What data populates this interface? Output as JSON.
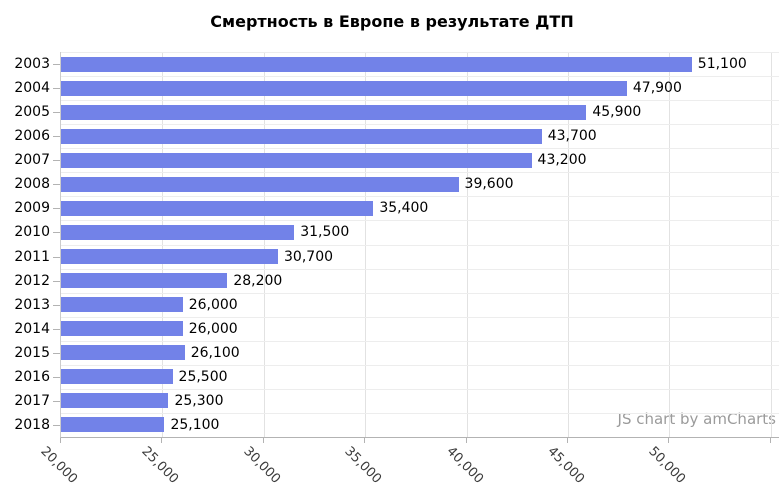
{
  "chart_data": {
    "type": "bar",
    "orientation": "horizontal",
    "title": "Смертность в Европе в результате ДТП",
    "categories": [
      "2003",
      "2004",
      "2005",
      "2006",
      "2007",
      "2008",
      "2009",
      "2010",
      "2011",
      "2012",
      "2013",
      "2014",
      "2015",
      "2016",
      "2017",
      "2018"
    ],
    "values": [
      51100,
      47900,
      45900,
      43700,
      43200,
      39600,
      35400,
      31500,
      30700,
      28200,
      26000,
      26000,
      26100,
      25500,
      25300,
      25100
    ],
    "value_labels": [
      "51,100",
      "47,900",
      "45,900",
      "43,700",
      "43,200",
      "39,600",
      "35,400",
      "31,500",
      "30,700",
      "28,200",
      "26,000",
      "26,000",
      "26,100",
      "25,500",
      "25,300",
      "25,100"
    ],
    "xlim": [
      20000,
      55400
    ],
    "x_tick_values": [
      20000,
      25000,
      30000,
      35000,
      40000,
      45000,
      50000
    ],
    "x_tick_labels": [
      "20,000",
      "25,000",
      "30,000",
      "35,000",
      "40,000",
      "45,000",
      "50,000"
    ],
    "unlabeled_grid_values": [
      55000
    ],
    "grid": true,
    "legend_position": "none",
    "xlabel": "",
    "ylabel": ""
  },
  "watermark": {
    "label": "JS chart by amCharts"
  },
  "colors": {
    "bar": "#7282E8",
    "grid_vertical": "#e2e2e2",
    "grid_horizontal": "#ededed",
    "axis_line": "#b3b3b3",
    "text": "#000000",
    "axis_label_text": "#3b3b3b",
    "watermark_text": "#9b9b9b",
    "background": "#ffffff"
  }
}
